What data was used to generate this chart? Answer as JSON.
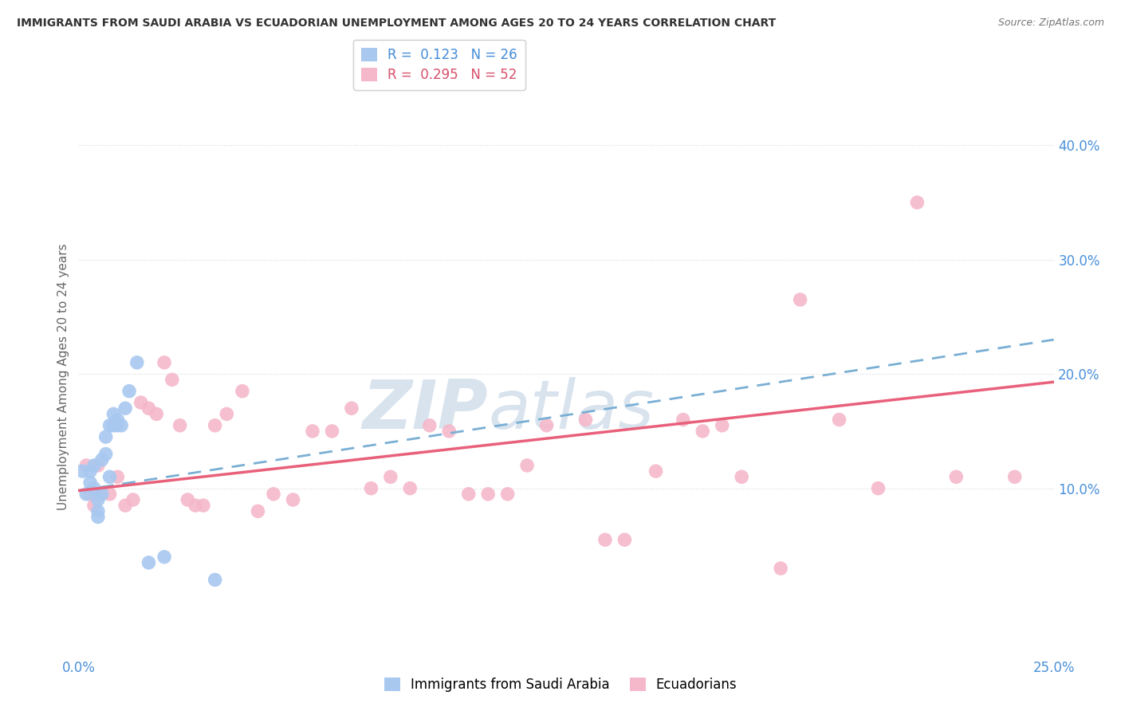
{
  "title": "IMMIGRANTS FROM SAUDI ARABIA VS ECUADORIAN UNEMPLOYMENT AMONG AGES 20 TO 24 YEARS CORRELATION CHART",
  "source": "Source: ZipAtlas.com",
  "ylabel": "Unemployment Among Ages 20 to 24 years",
  "xlim": [
    0.0,
    0.25
  ],
  "ylim": [
    -0.045,
    0.44
  ],
  "yticks_right": [
    0.1,
    0.2,
    0.3,
    0.4
  ],
  "ytick_right_labels": [
    "10.0%",
    "20.0%",
    "30.0%",
    "40.0%"
  ],
  "legend1_label": "R =  0.123   N = 26",
  "legend2_label": "R =  0.295   N = 52",
  "color_blue": "#a8c8f0",
  "color_pink": "#f5b8cb",
  "color_blue_line": "#7aafd4",
  "color_pink_line": "#e8607a",
  "watermark_zip": "ZIP",
  "watermark_atlas": "atlas",
  "blue_scatter_x": [
    0.001,
    0.002,
    0.003,
    0.003,
    0.004,
    0.004,
    0.005,
    0.005,
    0.005,
    0.006,
    0.006,
    0.007,
    0.007,
    0.008,
    0.008,
    0.009,
    0.009,
    0.01,
    0.01,
    0.011,
    0.012,
    0.013,
    0.015,
    0.018,
    0.022,
    0.035
  ],
  "blue_scatter_y": [
    0.115,
    0.095,
    0.115,
    0.105,
    0.12,
    0.1,
    0.09,
    0.08,
    0.075,
    0.125,
    0.095,
    0.145,
    0.13,
    0.155,
    0.11,
    0.155,
    0.165,
    0.155,
    0.16,
    0.155,
    0.17,
    0.185,
    0.21,
    0.035,
    0.04,
    0.02
  ],
  "pink_scatter_x": [
    0.002,
    0.003,
    0.004,
    0.005,
    0.006,
    0.008,
    0.01,
    0.012,
    0.014,
    0.016,
    0.018,
    0.02,
    0.022,
    0.024,
    0.026,
    0.028,
    0.03,
    0.032,
    0.035,
    0.038,
    0.042,
    0.046,
    0.05,
    0.055,
    0.06,
    0.065,
    0.07,
    0.075,
    0.08,
    0.085,
    0.09,
    0.095,
    0.1,
    0.105,
    0.11,
    0.115,
    0.12,
    0.13,
    0.135,
    0.14,
    0.148,
    0.155,
    0.16,
    0.165,
    0.17,
    0.18,
    0.185,
    0.195,
    0.205,
    0.215,
    0.225,
    0.24
  ],
  "pink_scatter_y": [
    0.12,
    0.095,
    0.085,
    0.12,
    0.095,
    0.095,
    0.11,
    0.085,
    0.09,
    0.175,
    0.17,
    0.165,
    0.21,
    0.195,
    0.155,
    0.09,
    0.085,
    0.085,
    0.155,
    0.165,
    0.185,
    0.08,
    0.095,
    0.09,
    0.15,
    0.15,
    0.17,
    0.1,
    0.11,
    0.1,
    0.155,
    0.15,
    0.095,
    0.095,
    0.095,
    0.12,
    0.155,
    0.16,
    0.055,
    0.055,
    0.115,
    0.16,
    0.15,
    0.155,
    0.11,
    0.03,
    0.265,
    0.16,
    0.1,
    0.35,
    0.11,
    0.11
  ],
  "blue_line_x": [
    0.0,
    0.25
  ],
  "blue_line_y": [
    0.098,
    0.23
  ],
  "pink_line_x": [
    0.0,
    0.25
  ],
  "pink_line_y": [
    0.098,
    0.193
  ],
  "grid_color": "#d8d8d8",
  "background_color": "#ffffff",
  "legend_bottom_labels": [
    "Immigrants from Saudi Arabia",
    "Ecuadorians"
  ]
}
